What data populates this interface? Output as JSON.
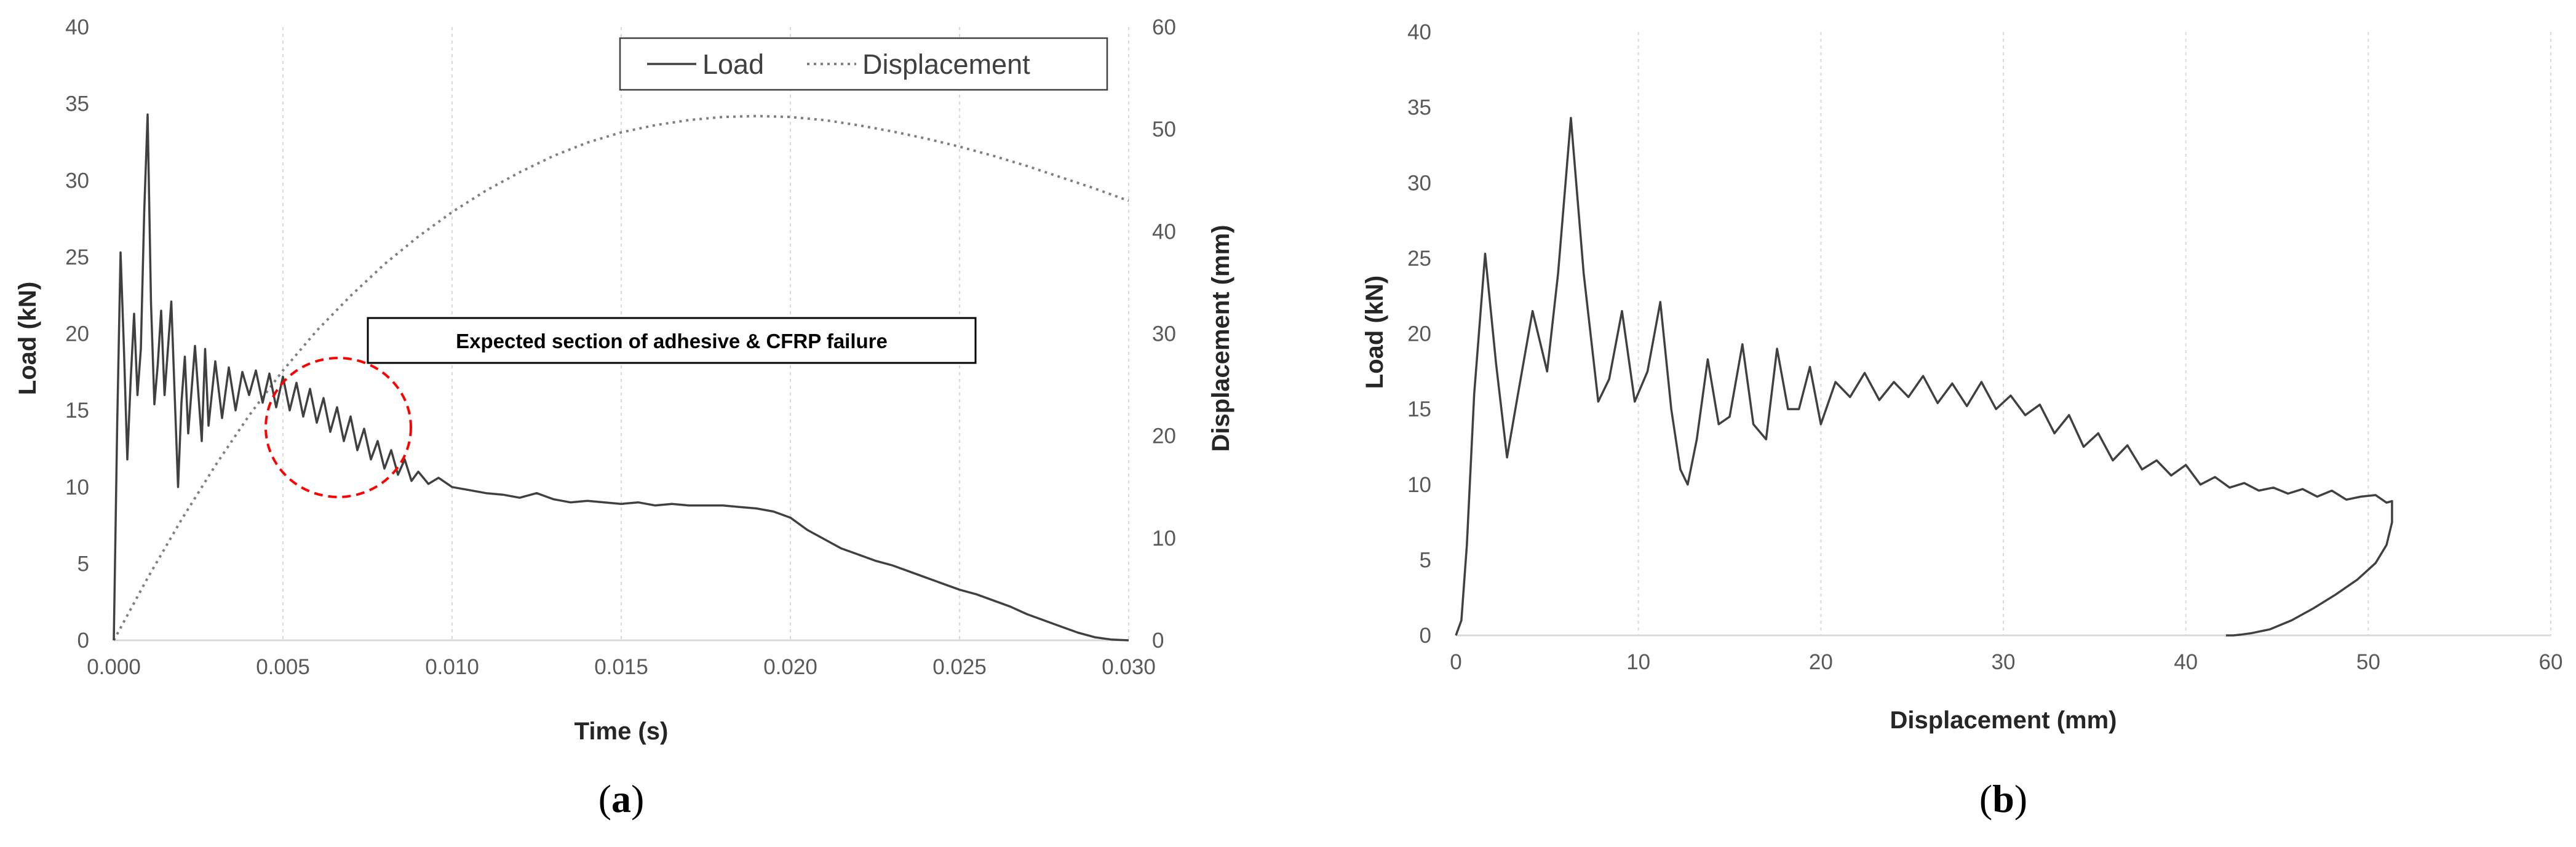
{
  "chart_data": [
    {
      "type": "line",
      "panel_label": "a",
      "xlabel": "Time (s)",
      "ylabel": "Load (kN)",
      "y2label": "Displacement (mm)",
      "xlim": [
        0,
        0.03
      ],
      "ylim": [
        0,
        40
      ],
      "y2lim": [
        0,
        60
      ],
      "x_ticks": [
        "0.000",
        "0.005",
        "0.010",
        "0.015",
        "0.020",
        "0.025",
        "0.030"
      ],
      "y_ticks": [
        "0",
        "5",
        "10",
        "15",
        "20",
        "25",
        "30",
        "35",
        "40"
      ],
      "y2_ticks": [
        "0",
        "10",
        "20",
        "30",
        "40",
        "50",
        "60"
      ],
      "grid": "vertical dotted",
      "legend_position": "top-right",
      "annotation": "Expected section of adhesive & CFRP failure",
      "highlight_color": "#ff0000",
      "series": [
        {
          "name": "Load",
          "axis": "left",
          "style": "solid",
          "x": [
            0,
            0.0001,
            0.0002,
            0.0003,
            0.0004,
            0.0005,
            0.0006,
            0.0007,
            0.0008,
            0.0009,
            0.001,
            0.0011,
            0.0012,
            0.0013,
            0.0014,
            0.0015,
            0.0016,
            0.0017,
            0.0018,
            0.0019,
            0.002,
            0.0021,
            0.0022,
            0.0024,
            0.0026,
            0.0027,
            0.0028,
            0.003,
            0.0032,
            0.0034,
            0.0036,
            0.0038,
            0.004,
            0.0042,
            0.0044,
            0.0046,
            0.0048,
            0.005,
            0.0052,
            0.0054,
            0.0056,
            0.0058,
            0.006,
            0.0062,
            0.0064,
            0.0066,
            0.0068,
            0.007,
            0.0072,
            0.0074,
            0.0076,
            0.0078,
            0.008,
            0.0082,
            0.0084,
            0.0086,
            0.0088,
            0.009,
            0.0093,
            0.0096,
            0.01,
            0.0105,
            0.011,
            0.0115,
            0.012,
            0.0125,
            0.013,
            0.0135,
            0.014,
            0.0145,
            0.015,
            0.0155,
            0.016,
            0.0165,
            0.017,
            0.0175,
            0.018,
            0.0185,
            0.019,
            0.0195,
            0.02,
            0.0205,
            0.021,
            0.0215,
            0.022,
            0.0225,
            0.023,
            0.0235,
            0.024,
            0.0245,
            0.025,
            0.0255,
            0.026,
            0.0265,
            0.027,
            0.0275,
            0.028,
            0.0285,
            0.029,
            0.0295,
            0.03
          ],
          "values": [
            0,
            14,
            25.3,
            19,
            11.8,
            17,
            21.3,
            16,
            19,
            28,
            34.3,
            22,
            15.4,
            18,
            21.5,
            16,
            19,
            22.1,
            16,
            10,
            15.5,
            18.5,
            13.5,
            19.2,
            13,
            19,
            14,
            18.2,
            14.5,
            17.8,
            15,
            17.5,
            16,
            17.6,
            15.5,
            17.4,
            15.2,
            17.2,
            15,
            16.8,
            14.6,
            16.4,
            14.2,
            15.8,
            13.6,
            15.2,
            13,
            14.6,
            12.4,
            13.8,
            11.8,
            13,
            11.2,
            12.4,
            10.8,
            11.8,
            10.4,
            11,
            10.2,
            10.6,
            10,
            9.8,
            9.6,
            9.5,
            9.3,
            9.6,
            9.2,
            9,
            9.1,
            9,
            8.9,
            9,
            8.8,
            8.9,
            8.8,
            8.8,
            8.8,
            8.7,
            8.6,
            8.4,
            8,
            7.2,
            6.6,
            6,
            5.6,
            5.2,
            4.9,
            4.5,
            4.1,
            3.7,
            3.3,
            3,
            2.6,
            2.2,
            1.7,
            1.3,
            0.9,
            0.5,
            0.2,
            0.05,
            0
          ]
        },
        {
          "name": "Displacement",
          "axis": "right",
          "style": "dotted",
          "x": [
            0,
            0.001,
            0.002,
            0.003,
            0.004,
            0.005,
            0.006,
            0.007,
            0.008,
            0.009,
            0.01,
            0.011,
            0.012,
            0.013,
            0.014,
            0.015,
            0.016,
            0.017,
            0.018,
            0.019,
            0.02,
            0.021,
            0.022,
            0.023,
            0.024,
            0.025,
            0.026,
            0.027,
            0.028,
            0.029,
            0.03
          ],
          "values": [
            0,
            6.1,
            11.8,
            17.1,
            22.0,
            26.4,
            30.3,
            33.7,
            36.8,
            39.5,
            41.9,
            44.0,
            45.8,
            47.4,
            48.7,
            49.7,
            50.4,
            50.9,
            51.2,
            51.3,
            51.2,
            50.9,
            50.4,
            49.8,
            49.1,
            48.3,
            47.4,
            46.4,
            45.3,
            44.2,
            43.0
          ]
        }
      ]
    },
    {
      "type": "line",
      "panel_label": "b",
      "xlabel": "Displacement (mm)",
      "ylabel": "Load (kN)",
      "xlim": [
        0,
        60
      ],
      "ylim": [
        0,
        40
      ],
      "x_ticks": [
        "0",
        "10",
        "20",
        "30",
        "40",
        "50",
        "60"
      ],
      "y_ticks": [
        "0",
        "5",
        "10",
        "15",
        "20",
        "25",
        "30",
        "35",
        "40"
      ],
      "grid": "vertical dotted",
      "series": [
        {
          "style": "solid",
          "x": [
            0,
            0.3,
            0.6,
            1.0,
            1.6,
            2.2,
            2.8,
            3.4,
            4.2,
            5.0,
            5.6,
            6.3,
            7.0,
            7.8,
            8.4,
            9.1,
            9.8,
            10.5,
            11.2,
            11.8,
            12.3,
            12.7,
            13.2,
            13.8,
            14.4,
            15.0,
            15.7,
            16.3,
            17.0,
            17.6,
            18.2,
            18.8,
            19.4,
            20.0,
            20.8,
            21.6,
            22.4,
            23.2,
            24.0,
            24.8,
            25.6,
            26.4,
            27.2,
            28.0,
            28.8,
            29.6,
            30.4,
            31.2,
            32.0,
            32.8,
            33.6,
            34.4,
            35.2,
            36.0,
            36.8,
            37.6,
            38.4,
            39.2,
            40.0,
            40.8,
            41.6,
            42.4,
            43.2,
            44.0,
            44.8,
            45.6,
            46.4,
            47.2,
            48.0,
            48.8,
            49.6,
            50.4,
            51.0,
            51.3,
            51.3,
            51.0,
            50.4,
            49.4,
            48.2,
            47.0,
            45.8,
            44.6,
            43.6,
            43.0,
            42.6,
            42.2
          ],
          "values": [
            0,
            1,
            6,
            16,
            25.3,
            18,
            11.8,
            16,
            21.5,
            17.5,
            24,
            34.3,
            24,
            15.5,
            17,
            21.5,
            15.5,
            17.5,
            22.1,
            15,
            11,
            10,
            13,
            18.3,
            14,
            14.5,
            19.3,
            14,
            13,
            19,
            15,
            15,
            17.8,
            14,
            16.8,
            15.8,
            17.4,
            15.6,
            16.8,
            15.8,
            17.2,
            15.4,
            16.7,
            15.2,
            16.8,
            15,
            15.9,
            14.6,
            15.3,
            13.4,
            14.6,
            12.5,
            13.4,
            11.6,
            12.6,
            11,
            11.6,
            10.6,
            11.3,
            10,
            10.5,
            9.8,
            10.1,
            9.6,
            9.8,
            9.4,
            9.7,
            9.2,
            9.6,
            9,
            9.2,
            9.3,
            8.8,
            8.9,
            7.5,
            6.0,
            4.8,
            3.7,
            2.7,
            1.8,
            1.0,
            0.4,
            0.15,
            0.05,
            0,
            0
          ]
        }
      ]
    }
  ]
}
